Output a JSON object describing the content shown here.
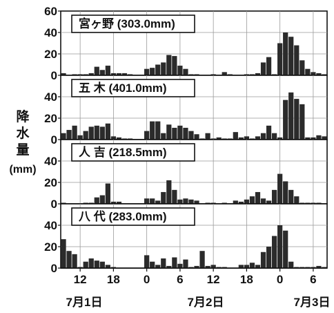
{
  "chart_data": {
    "type": "bar",
    "ylabel_chars": [
      "降",
      "水",
      "量"
    ],
    "ylabel_unit": "(mm)",
    "ylim": [
      0,
      60
    ],
    "yticks_top": [
      60,
      40,
      20,
      0
    ],
    "yticks": [
      40,
      20,
      0
    ],
    "xtick_labels": [
      "12",
      "18",
      "0",
      "6",
      "12",
      "18",
      "0",
      "6"
    ],
    "date_labels": [
      "7月1日",
      "7月2日",
      "7月3日"
    ],
    "grid": true,
    "panels": [
      {
        "name": "宮ヶ野 (303.0mm)",
        "values": [
          2,
          0,
          1,
          1,
          1,
          2,
          8,
          5,
          9,
          2,
          2,
          2,
          1,
          0,
          0,
          6,
          7,
          10,
          12,
          19,
          18,
          9,
          6,
          1,
          1,
          0,
          0,
          1,
          0,
          3,
          1,
          0,
          0,
          1,
          1,
          2,
          12,
          17,
          1,
          30,
          40,
          36,
          28,
          14,
          6,
          3,
          2,
          1
        ]
      },
      {
        "name": "五 木 (401.0mm)",
        "values": [
          6,
          9,
          13,
          4,
          8,
          12,
          13,
          12,
          15,
          3,
          2,
          1,
          1,
          0,
          0,
          8,
          17,
          17,
          6,
          14,
          11,
          13,
          11,
          8,
          5,
          1,
          6,
          1,
          2,
          1,
          1,
          7,
          2,
          3,
          1,
          3,
          6,
          13,
          6,
          2,
          37,
          44,
          38,
          33,
          2,
          2,
          4,
          3
        ]
      },
      {
        "name": "人 吉 (218.5mm)",
        "values": [
          1,
          0,
          0,
          0,
          1,
          1,
          6,
          8,
          19,
          2,
          2,
          0,
          0,
          0,
          0,
          5,
          5,
          3,
          11,
          22,
          13,
          4,
          5,
          4,
          3,
          0,
          1,
          1,
          0,
          1,
          0,
          3,
          2,
          4,
          7,
          11,
          5,
          3,
          13,
          28,
          21,
          13,
          7,
          1,
          1,
          1,
          1,
          0
        ]
      },
      {
        "name": "八 代 (283.0mm)",
        "values": [
          27,
          16,
          13,
          1,
          6,
          9,
          7,
          6,
          3,
          1,
          0,
          0,
          0,
          0,
          0,
          12,
          6,
          3,
          9,
          2,
          10,
          4,
          8,
          1,
          2,
          16,
          2,
          3,
          1,
          1,
          0,
          0,
          3,
          3,
          5,
          3,
          15,
          20,
          30,
          40,
          35,
          6,
          1,
          1,
          1,
          1,
          2,
          1
        ]
      }
    ]
  }
}
